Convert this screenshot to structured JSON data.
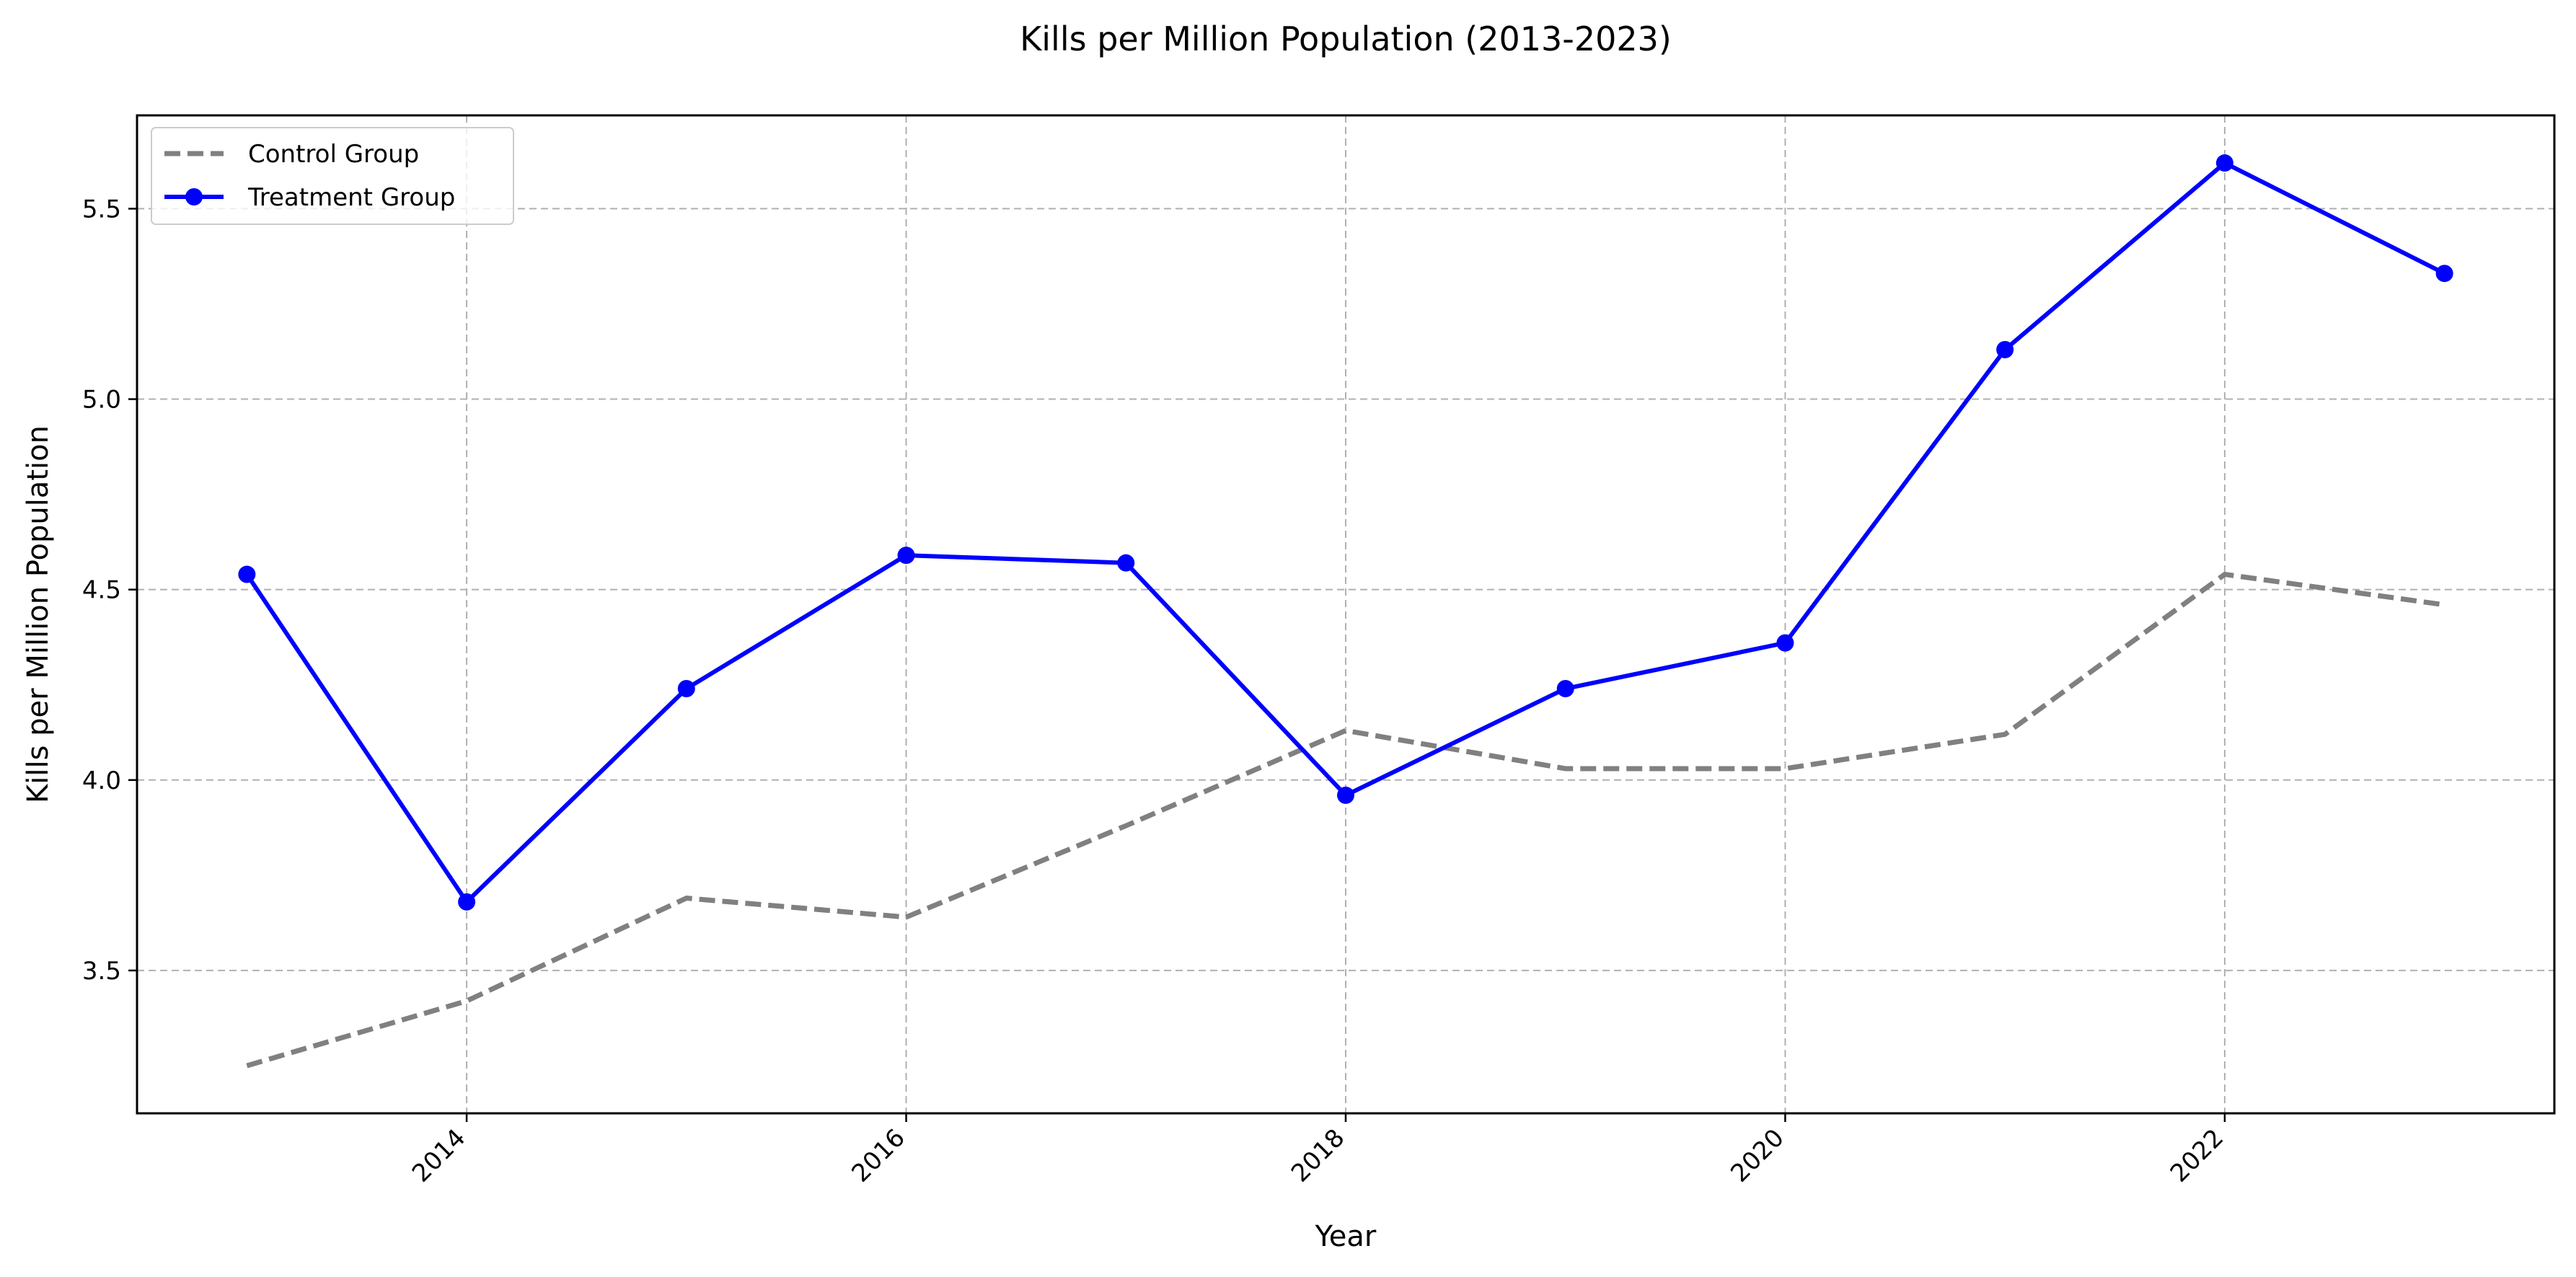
{
  "chart_data": {
    "type": "line",
    "title": "Kills per Million Population (2013-2023)",
    "xlabel": "Year",
    "ylabel": "Kills per Million Population",
    "x": [
      2013,
      2014,
      2015,
      2016,
      2017,
      2018,
      2019,
      2020,
      2021,
      2022,
      2023
    ],
    "xlim": [
      2012.5,
      2023.5
    ],
    "ylim": [
      3.125,
      5.745
    ],
    "xticks": [
      "2014",
      "2016",
      "2018",
      "2020",
      "2022"
    ],
    "yticks": [
      "3.5",
      "4.0",
      "4.5",
      "5.0",
      "5.5"
    ],
    "grid": true,
    "legend_position": "top-left",
    "series": [
      {
        "name": "Control Group",
        "style": "dashed",
        "color": "#808080",
        "values": [
          3.25,
          3.42,
          3.69,
          3.64,
          3.88,
          4.13,
          4.03,
          4.03,
          4.12,
          4.54,
          4.46
        ]
      },
      {
        "name": "Treatment Group",
        "style": "solid-markers",
        "color": "#0000ff",
        "values": [
          4.54,
          3.68,
          4.24,
          4.59,
          4.57,
          3.96,
          4.24,
          4.36,
          5.13,
          5.62,
          5.33
        ]
      }
    ]
  }
}
